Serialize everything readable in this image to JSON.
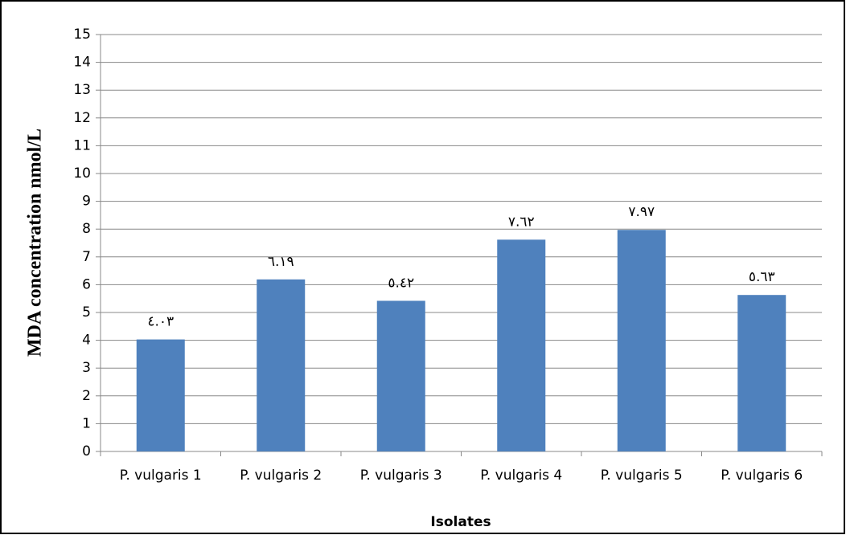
{
  "chart_data": {
    "type": "bar",
    "y_label": "MDA  concentration nmol/L",
    "x_label": "Isolates",
    "categories": [
      "P. vulgaris 1",
      "P. vulgaris 2",
      "P. vulgaris 3",
      "P. vulgaris 4",
      "P. vulgaris 5",
      "P. vulgaris 6"
    ],
    "values": [
      4.03,
      6.19,
      5.42,
      7.62,
      7.97,
      5.63
    ],
    "value_labels": [
      "٤.٠٣",
      "٦.١٩",
      "٥.٤٢",
      "٧.٦٢",
      "٧.٩٧",
      "٥.٦٣"
    ],
    "color": "#4f81bd",
    "ylim": [
      0,
      15
    ],
    "yticks": [
      0,
      1,
      2,
      3,
      4,
      5,
      6,
      7,
      8,
      9,
      10,
      11,
      12,
      13,
      14,
      15
    ],
    "grid": true
  }
}
